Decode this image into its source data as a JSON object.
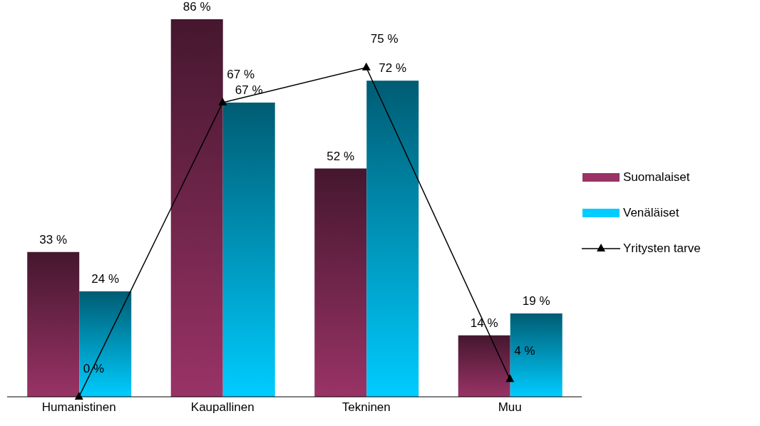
{
  "chart_data": {
    "type": "bar",
    "categories": [
      "Humanistinen",
      "Kaupallinen",
      "Tekninen",
      "Muu"
    ],
    "series": [
      {
        "name": "Suomalaiset",
        "color": "#993366",
        "values": [
          33,
          86,
          52,
          14
        ],
        "value_labels": [
          "33 %",
          "86 %",
          "52 %",
          "14 %"
        ]
      },
      {
        "name": "Venäläiset",
        "color": "#00ccff",
        "values": [
          24,
          67,
          72,
          19
        ],
        "value_labels": [
          "24 %",
          "67 %",
          "72 %",
          "19 %"
        ]
      },
      {
        "name": "Yritysten tarve",
        "type": "line",
        "color": "#000000",
        "values": [
          0,
          67,
          75,
          4
        ],
        "value_labels": [
          "0 %",
          "67 %",
          "75 %",
          "4 %"
        ],
        "marker": "triangle"
      }
    ],
    "legend": "right"
  }
}
